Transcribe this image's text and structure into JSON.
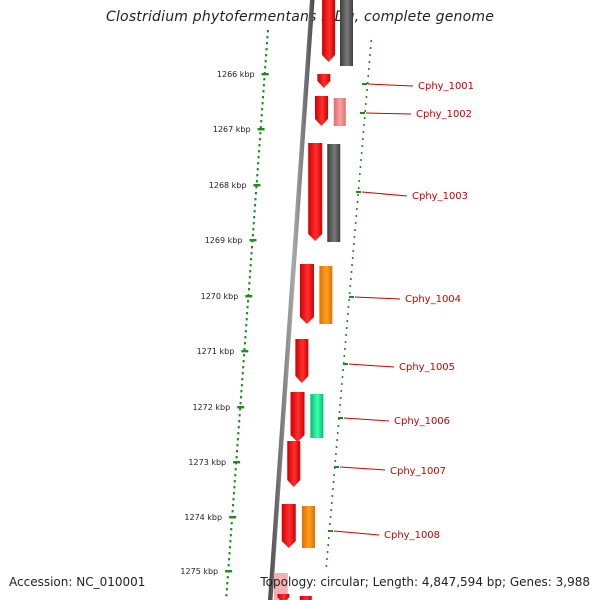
{
  "title": "Clostridium phytofermentans ISDg, complete genome",
  "accession": "Accession: NC_010001",
  "summary": "Topology: circular; Length: 4,847,594 bp; Genes: 3,988",
  "scale_labels": [
    "1266 kbp",
    "1267 kbp",
    "1268 kbp",
    "1269 kbp",
    "1270 kbp",
    "1271 kbp",
    "1272 kbp",
    "1273 kbp",
    "1274 kbp",
    "1275 kbp"
  ],
  "genes": [
    {
      "label": "Cphy_1001",
      "color": "#cc0000"
    },
    {
      "label": "Cphy_1002",
      "color": "#cc0000"
    },
    {
      "label": "Cphy_1003",
      "color": "#cc0000"
    },
    {
      "label": "Cphy_1004",
      "color": "#cc0000"
    },
    {
      "label": "Cphy_1005",
      "color": "#cc0000"
    },
    {
      "label": "Cphy_1006",
      "color": "#cc0000"
    },
    {
      "label": "Cphy_1007",
      "color": "#cc0000"
    },
    {
      "label": "Cphy_1008",
      "color": "#cc0000"
    }
  ],
  "colors": {
    "scale_dots": "#1f8a1f",
    "gene_red": "#ff1a1a",
    "gene_dark": "#555555",
    "gene_pink": "#f08080",
    "gene_orange": "#ff8c00",
    "gene_teal": "#00e08a",
    "backbone": "#6f6f6f"
  }
}
